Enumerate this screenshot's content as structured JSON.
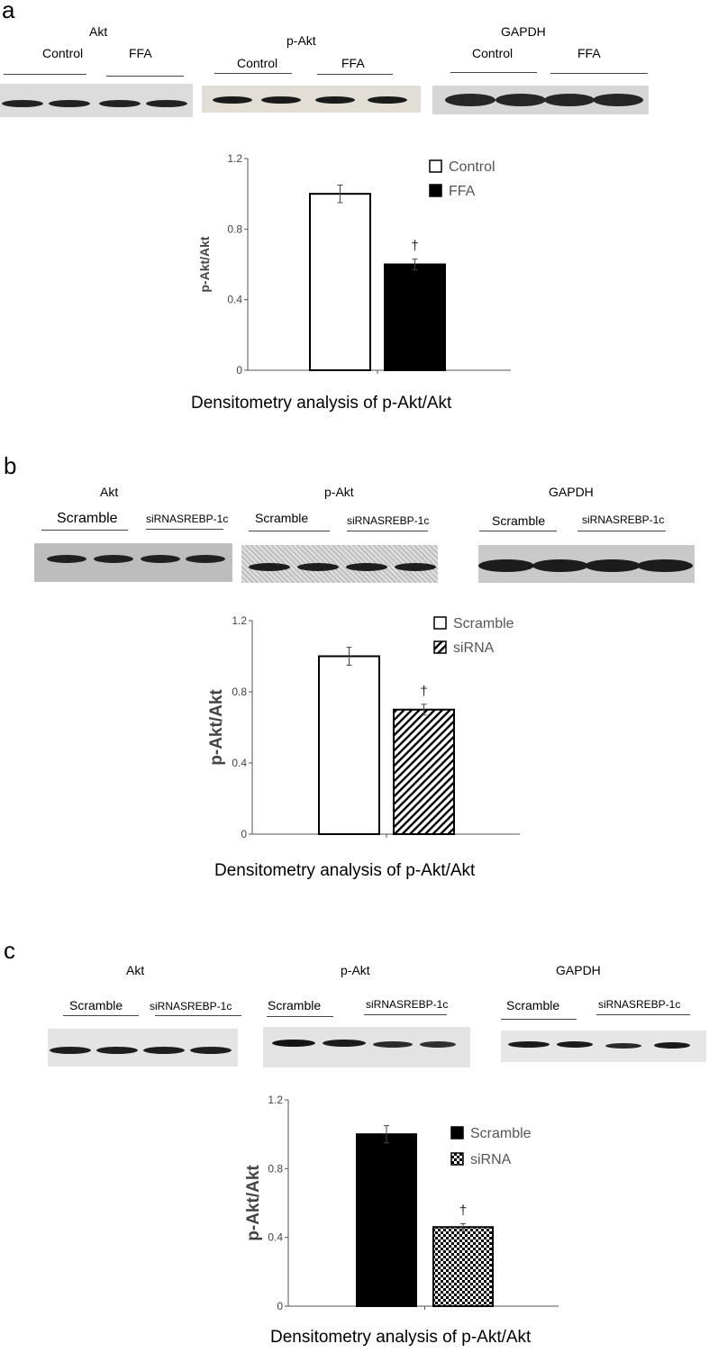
{
  "panels": [
    {
      "letter": "a",
      "blots": [
        {
          "title": "Akt",
          "group1": "Control",
          "group2": "FFA"
        },
        {
          "title": "p-Akt",
          "group1": "Control",
          "group2": "FFA"
        },
        {
          "title": "GAPDH",
          "group1": "Control",
          "group2": "FFA"
        }
      ],
      "caption": "Densitometry analysis of p-Akt/Akt"
    },
    {
      "letter": "b",
      "blots": [
        {
          "title": "Akt",
          "group1": "Scramble",
          "group2": "siRNASREBP-1c"
        },
        {
          "title": "p-Akt",
          "group1": "Scramble",
          "group2": "siRNASREBP-1c"
        },
        {
          "title": "GAPDH",
          "group1": "Scramble",
          "group2": "siRNASREBP-1c"
        }
      ],
      "caption": "Densitometry analysis of p-Akt/Akt"
    },
    {
      "letter": "c",
      "blots": [
        {
          "title": "Akt",
          "group1": "Scramble",
          "group2": "siRNASREBP-1c"
        },
        {
          "title": "p-Akt",
          "group1": "Scramble",
          "group2": "siRNASREBP-1c"
        },
        {
          "title": "GAPDH",
          "group1": "Scramble",
          "group2": "siRNASREBP-1c"
        }
      ],
      "caption": "Densitometry analysis of p-Akt/Akt"
    }
  ],
  "chart_data": [
    {
      "type": "bar",
      "title": "",
      "ylabel": "p-Akt/Akt",
      "xlabel": "Densitometry analysis of p-Akt/Akt",
      "ylim": [
        0,
        1.2
      ],
      "yticks": [
        "0",
        "0.4",
        "0.8",
        "1.2"
      ],
      "legend_position": "top-right",
      "significance_mark": "†",
      "series": [
        {
          "name": "Control",
          "value": 1.0,
          "error": 0.05,
          "fill": "white"
        },
        {
          "name": "FFA",
          "value": 0.6,
          "error": 0.03,
          "fill": "black"
        }
      ]
    },
    {
      "type": "bar",
      "title": "",
      "ylabel": "p-Akt/Akt",
      "xlabel": "Densitometry analysis of p-Akt/Akt",
      "ylim": [
        0,
        1.2
      ],
      "yticks": [
        "0",
        "0.4",
        "0.8",
        "1.2"
      ],
      "legend_position": "top-right",
      "significance_mark": "†",
      "series": [
        {
          "name": "Scramble",
          "value": 1.0,
          "error": 0.05,
          "fill": "white"
        },
        {
          "name": "siRNA",
          "value": 0.7,
          "error": 0.03,
          "fill": "hatch"
        }
      ]
    },
    {
      "type": "bar",
      "title": "",
      "ylabel": "p-Akt/Akt",
      "xlabel": "Densitometry analysis of p-Akt/Akt",
      "ylim": [
        0,
        1.2
      ],
      "yticks": [
        "0",
        "0.4",
        "0.8",
        "1.2"
      ],
      "legend_position": "top-right",
      "significance_mark": "†",
      "series": [
        {
          "name": "Scramble",
          "value": 1.0,
          "error": 0.05,
          "fill": "black"
        },
        {
          "name": "siRNA",
          "value": 0.46,
          "error": 0.02,
          "fill": "checker"
        }
      ]
    }
  ]
}
